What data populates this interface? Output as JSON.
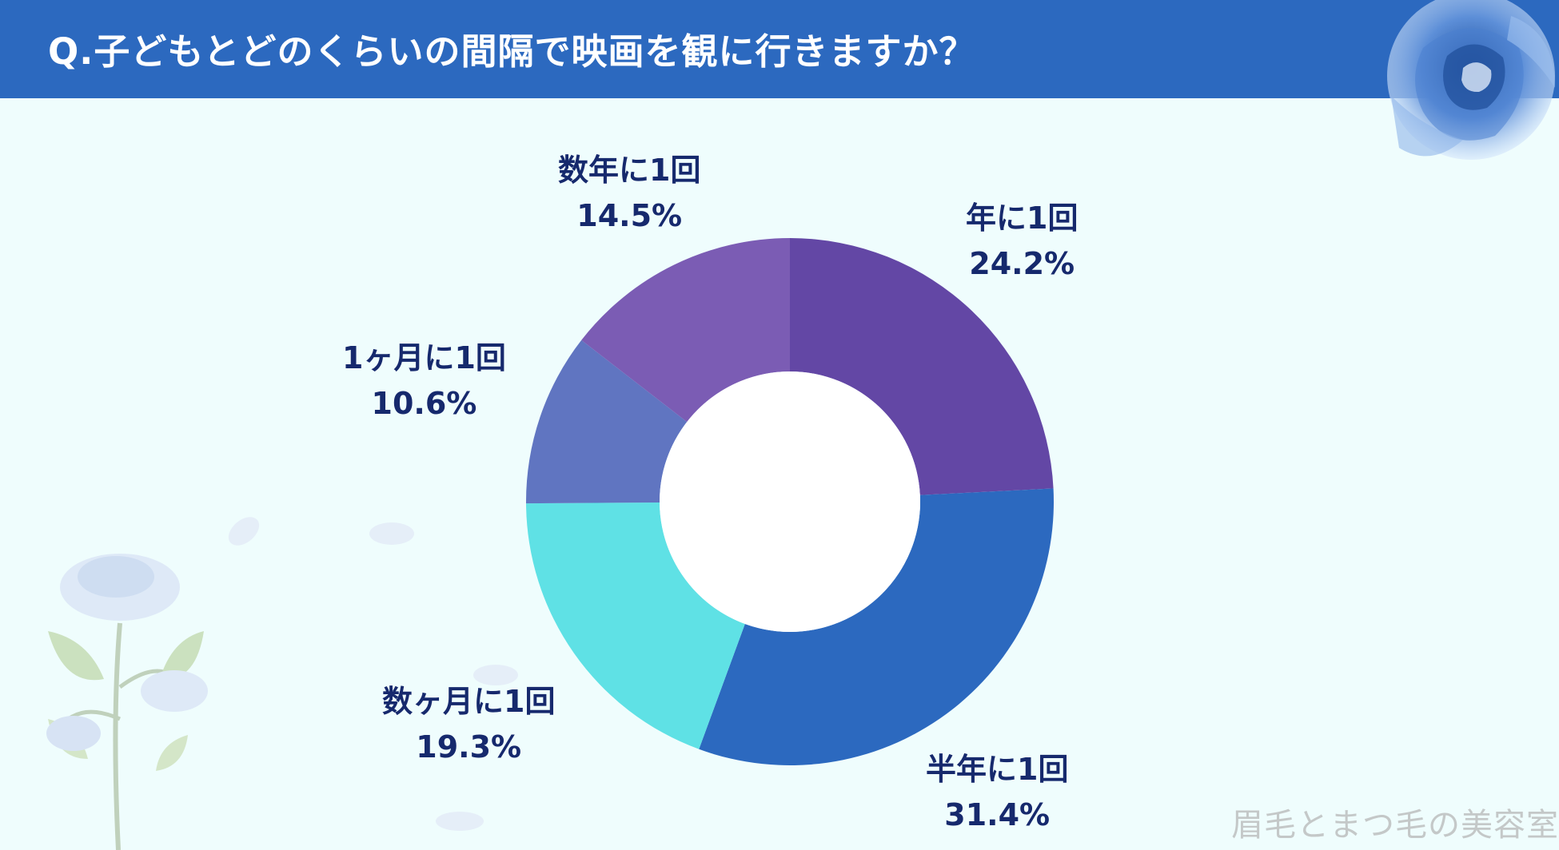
{
  "header": {
    "title": "Q.子どもとどのくらいの間隔で映画を観に行きますか？"
  },
  "watermark": "眉毛とまつ毛の美容室",
  "colors": {
    "header_bg": "#2c69bf",
    "page_bg": "#effdfd",
    "label_text": "#16296d"
  },
  "chart_data": {
    "type": "pie",
    "donut": true,
    "title": "Q.子どもとどのくらいの間隔で映画を観に行きますか？",
    "slices": [
      {
        "label": "年に1回",
        "value": 24.2,
        "value_label": "24.2%",
        "color": "#6347a5"
      },
      {
        "label": "半年に1回",
        "value": 31.4,
        "value_label": "31.4%",
        "color": "#2c69bf"
      },
      {
        "label": "数ヶ月に1回",
        "value": 19.3,
        "value_label": "19.3%",
        "color": "#5fe1e5"
      },
      {
        "label": "1ヶ月に1回",
        "value": 10.6,
        "value_label": "10.6%",
        "color": "#6075c1"
      },
      {
        "label": "数年に1回",
        "value": 14.5,
        "value_label": "14.5%",
        "color": "#7b5cb4"
      }
    ]
  }
}
